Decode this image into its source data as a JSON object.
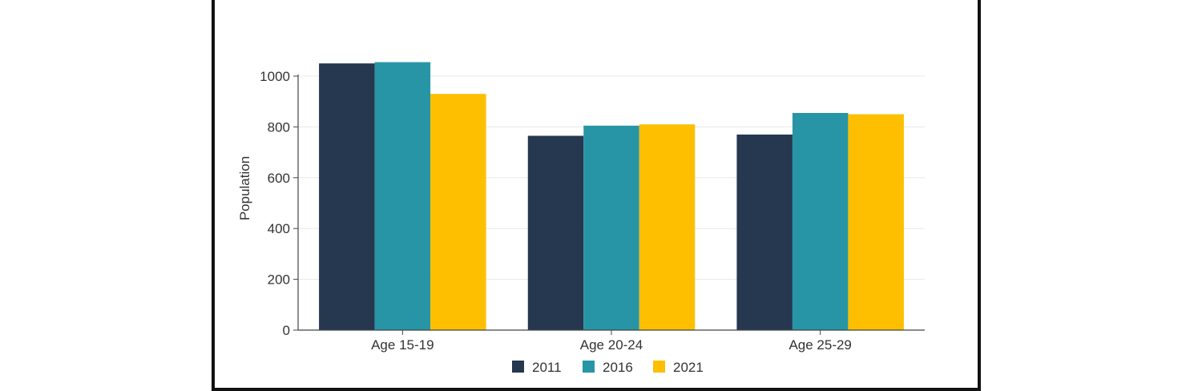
{
  "chart_data": {
    "type": "bar",
    "title": "",
    "xlabel": "",
    "ylabel": "Population",
    "categories": [
      "Age 15-19",
      "Age 20-24",
      "Age 25-29"
    ],
    "series": [
      {
        "name": "2011",
        "color": "#263750",
        "values": [
          1050,
          765,
          770
        ]
      },
      {
        "name": "2016",
        "color": "#2795a6",
        "values": [
          1055,
          805,
          855
        ]
      },
      {
        "name": "2021",
        "color": "#fdbf00",
        "values": [
          930,
          810,
          850
        ]
      }
    ],
    "ylim": [
      0,
      1000
    ],
    "yticks": [
      0,
      200,
      400,
      600,
      800,
      1000
    ],
    "grid": true,
    "legend": "bottom-center"
  }
}
